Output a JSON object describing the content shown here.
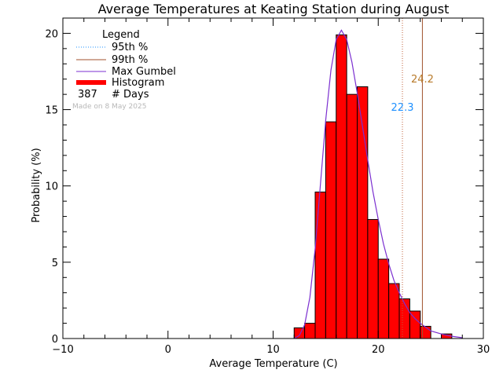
{
  "chart_data": {
    "type": "bar",
    "title": "Average Temperatures at Keating Station during August",
    "xlabel": "Average Temperature (C)",
    "ylabel": "Probability  (%)",
    "xlim": [
      -10,
      30
    ],
    "ylim": [
      0,
      21
    ],
    "xticks": [
      -10,
      0,
      10,
      20,
      30
    ],
    "yticks": [
      0,
      5,
      10,
      15,
      20
    ],
    "xtick_labels": [
      "−10",
      "0",
      "10",
      "20",
      "30"
    ],
    "ytick_labels": [
      "0",
      "5",
      "10",
      "15",
      "20"
    ],
    "grid": false,
    "legend_position": "top-left",
    "legend_title": "Legend",
    "legend": [
      {
        "label": "95th %",
        "style": "dotted",
        "color": "#1e90ff"
      },
      {
        "label": "99th %",
        "style": "solid",
        "color": "#a0522d"
      },
      {
        "label": "Max Gumbel",
        "style": "solid",
        "color": "#7b2fd0"
      },
      {
        "label": "Histogram",
        "style": "thick",
        "color": "#ff0000"
      }
    ],
    "count_value": "387",
    "count_label": "# Days",
    "watermark": "Made on 8 May 2025",
    "histogram": {
      "bin_width": 1,
      "bins": [
        {
          "x0": 12,
          "value": 0.7
        },
        {
          "x0": 13,
          "value": 1.0
        },
        {
          "x0": 14,
          "value": 9.6
        },
        {
          "x0": 15,
          "value": 14.2
        },
        {
          "x0": 16,
          "value": 19.9
        },
        {
          "x0": 17,
          "value": 16.0
        },
        {
          "x0": 18,
          "value": 16.5
        },
        {
          "x0": 19,
          "value": 7.8
        },
        {
          "x0": 20,
          "value": 5.2
        },
        {
          "x0": 21,
          "value": 3.6
        },
        {
          "x0": 22,
          "value": 2.6
        },
        {
          "x0": 23,
          "value": 1.8
        },
        {
          "x0": 24,
          "value": 0.8
        },
        {
          "x0": 26,
          "value": 0.3
        }
      ],
      "color": "#ff0000"
    },
    "gumbel_curve": {
      "color": "#7b2fd0",
      "points": [
        [
          12.0,
          0.0
        ],
        [
          12.5,
          0.2
        ],
        [
          13.0,
          0.9
        ],
        [
          13.5,
          2.7
        ],
        [
          14.0,
          5.9
        ],
        [
          14.5,
          10.1
        ],
        [
          15.0,
          14.3
        ],
        [
          15.5,
          17.6
        ],
        [
          16.0,
          19.6
        ],
        [
          16.5,
          20.2
        ],
        [
          17.0,
          19.6
        ],
        [
          17.5,
          18.1
        ],
        [
          18.0,
          16.1
        ],
        [
          18.5,
          13.9
        ],
        [
          19.0,
          11.7
        ],
        [
          19.5,
          9.6
        ],
        [
          20.0,
          7.8
        ],
        [
          20.5,
          6.2
        ],
        [
          21.0,
          4.9
        ],
        [
          21.5,
          3.8
        ],
        [
          22.0,
          3.0
        ],
        [
          22.5,
          2.3
        ],
        [
          23.0,
          1.7
        ],
        [
          23.5,
          1.3
        ],
        [
          24.0,
          1.0
        ],
        [
          25.0,
          0.5
        ],
        [
          26.0,
          0.3
        ],
        [
          27.0,
          0.15
        ],
        [
          28.0,
          0.05
        ]
      ]
    },
    "percentiles": [
      {
        "name": "95th %",
        "value": 22.3,
        "label": "22.3",
        "color": "#1e90ff",
        "line_color": "#c0603a",
        "style": "dotted"
      },
      {
        "name": "99th %",
        "value": 24.2,
        "label": "24.2",
        "color": "#b87a2a",
        "line_color": "#a0522d",
        "style": "solid"
      }
    ]
  }
}
